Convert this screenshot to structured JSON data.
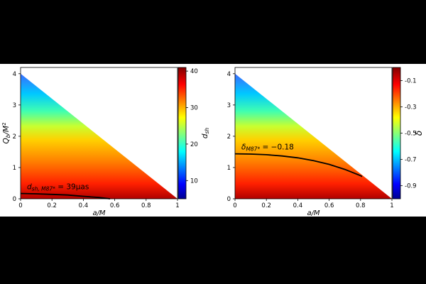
{
  "chart_data": [
    {
      "type": "heatmap",
      "xlabel": "a/M",
      "ylabel": "Q_b/M^2",
      "xlim": [
        0,
        1
      ],
      "ylim": [
        0,
        4.2
      ],
      "x_ticks": [
        "0",
        "0.2",
        "0.4",
        "0.6",
        "0.8",
        "1"
      ],
      "y_ticks": [
        "0",
        "1",
        "2",
        "3",
        "4"
      ],
      "region_boundary": [
        [
          0,
          4.0
        ],
        [
          1,
          0.0
        ]
      ],
      "colorbar": {
        "label": "d_sh",
        "range": [
          5,
          41
        ],
        "ticks": [
          "10",
          "20",
          "30",
          "40"
        ],
        "tick_values": [
          10,
          20,
          30,
          40
        ]
      },
      "colormap": "jet",
      "color_trend": "value highest along Q_b = 0, decreasing toward the diagonal boundary",
      "contour": {
        "label_main": "d",
        "label_sub": "sh, M87*",
        "label_value": " = 39μas",
        "points": [
          [
            0,
            0.17
          ],
          [
            0.1,
            0.16
          ],
          [
            0.2,
            0.14
          ],
          [
            0.3,
            0.12
          ],
          [
            0.4,
            0.08
          ],
          [
            0.5,
            0.04
          ],
          [
            0.57,
            0.0
          ]
        ]
      }
    },
    {
      "type": "heatmap",
      "xlabel": "a/M",
      "ylabel": "",
      "xlim": [
        0,
        1
      ],
      "ylim": [
        0,
        4.2
      ],
      "x_ticks": [
        "0",
        "0.2",
        "0.4",
        "0.6",
        "0.8",
        "1"
      ],
      "y_ticks": [
        "0",
        "1",
        "2",
        "3",
        "4"
      ],
      "region_boundary": [
        [
          0,
          4.0
        ],
        [
          1,
          0.0
        ]
      ],
      "colorbar": {
        "label": "δ",
        "range": [
          -1.0,
          0.0
        ],
        "ticks": [
          "-0.1",
          "-0.3",
          "-0.5",
          "-0.7",
          "-0.9"
        ],
        "tick_values": [
          -0.1,
          -0.3,
          -0.5,
          -0.7,
          -0.9
        ]
      },
      "colormap": "jet",
      "color_trend": "value highest along Q_b = 0, decreasing toward the diagonal boundary",
      "contour": {
        "label_main": "δ",
        "label_sub": "M87*",
        "label_value": " = −0.18",
        "points": [
          [
            0,
            1.44
          ],
          [
            0.1,
            1.43
          ],
          [
            0.2,
            1.41
          ],
          [
            0.3,
            1.37
          ],
          [
            0.4,
            1.31
          ],
          [
            0.5,
            1.22
          ],
          [
            0.6,
            1.1
          ],
          [
            0.7,
            0.94
          ],
          [
            0.8,
            0.74
          ],
          [
            0.81,
            0.71
          ]
        ]
      }
    }
  ]
}
